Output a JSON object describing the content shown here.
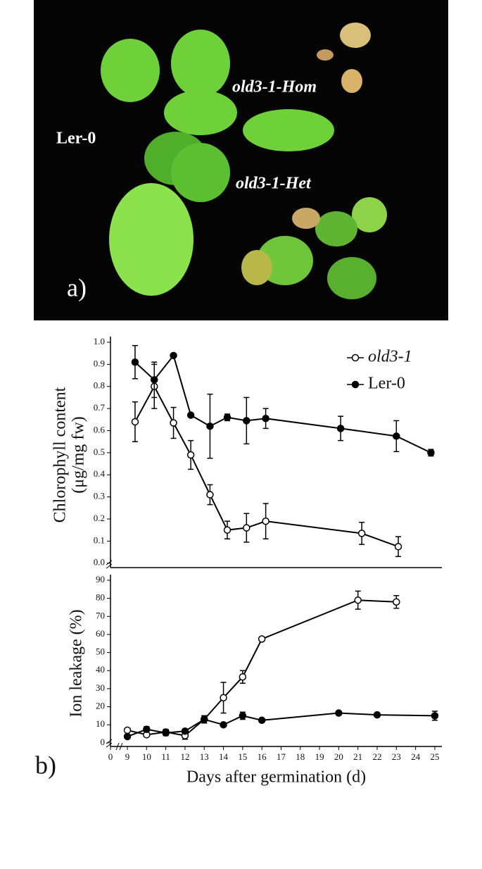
{
  "photo": {
    "panel_label": "a)",
    "labels": [
      "Ler-0",
      "old3-1-Hom",
      "old3-1-Het"
    ]
  },
  "chart_data": [
    {
      "type": "line",
      "ylabel": [
        "Chlorophyll content",
        "(μg/mg fw)"
      ],
      "xlim": [
        8.12,
        25.37
      ],
      "ylim": [
        -0.02,
        1.0
      ],
      "yticks": [
        {
          "value": 0,
          "label": "0.0"
        },
        0.1,
        0.2,
        0.3,
        0.4,
        0.5,
        0.6,
        0.7,
        0.8,
        0.9,
        {
          "value": 1,
          "label": "1.0"
        }
      ],
      "y_break": true,
      "legend": "top-right",
      "series": [
        {
          "name": "old3-1",
          "color": "#000000",
          "marker": "open",
          "x": [
            9.4,
            10.4,
            11.4,
            12.3,
            13.3,
            14.2,
            15.2,
            16.2,
            21.2,
            23.1
          ],
          "values": [
            0.64,
            0.8,
            0.635,
            0.49,
            0.31,
            0.15,
            0.16,
            0.19,
            0.135,
            0.075
          ],
          "errors": [
            0.09,
            0.1,
            0.07,
            0.065,
            0.045,
            0.04,
            0.065,
            0.08,
            0.05,
            0.045
          ]
        },
        {
          "name": "Ler-0",
          "color": "#000000",
          "marker": "filled",
          "x": [
            9.4,
            10.4,
            11.4,
            12.3,
            13.3,
            14.2,
            15.2,
            16.2,
            20.1,
            23.0,
            24.8
          ],
          "values": [
            0.91,
            0.83,
            0.94,
            0.67,
            0.62,
            0.66,
            0.645,
            0.655,
            0.61,
            0.575,
            0.5
          ],
          "errors": [
            0.075,
            0.08,
            0,
            0,
            0.145,
            0.015,
            0.105,
            0.045,
            0.055,
            0.07,
            0.015
          ]
        }
      ]
    },
    {
      "type": "line",
      "panel_label": "b)",
      "xlabel": "Days after germination (d)",
      "ylabel": [
        "Ion leakage (%)"
      ],
      "xlim": [
        8.12,
        25.37
      ],
      "ylim": [
        -2,
        90
      ],
      "xticks": [
        0,
        9,
        10,
        11,
        12,
        13,
        14,
        15,
        16,
        17,
        18,
        19,
        20,
        21,
        22,
        23,
        24,
        25
      ],
      "yticks": [
        0,
        10,
        20,
        30,
        40,
        50,
        60,
        70,
        80,
        90
      ],
      "x_break": true,
      "y_break": true,
      "series": [
        {
          "name": "old3-1",
          "color": "#000000",
          "marker": "open",
          "x": [
            9,
            10,
            11,
            12,
            13,
            14,
            15,
            16,
            21,
            23
          ],
          "values": [
            7,
            4.5,
            6,
            4,
            13,
            25,
            36.5,
            57.5,
            79,
            78
          ],
          "errors": [
            0,
            1,
            1.5,
            2,
            2,
            8.5,
            3.5,
            0,
            5,
            3.5
          ]
        },
        {
          "name": "Ler-0",
          "color": "#000000",
          "marker": "filled",
          "x": [
            9,
            10,
            11,
            12,
            13,
            14,
            15,
            16,
            20,
            22,
            25
          ],
          "values": [
            3.5,
            7.5,
            5.5,
            6.5,
            13,
            10,
            15,
            12.5,
            16.5,
            15.5,
            15
          ],
          "errors": [
            0,
            1.5,
            1.5,
            1,
            2,
            0,
            2,
            0,
            0,
            0,
            2.5
          ]
        }
      ]
    }
  ]
}
